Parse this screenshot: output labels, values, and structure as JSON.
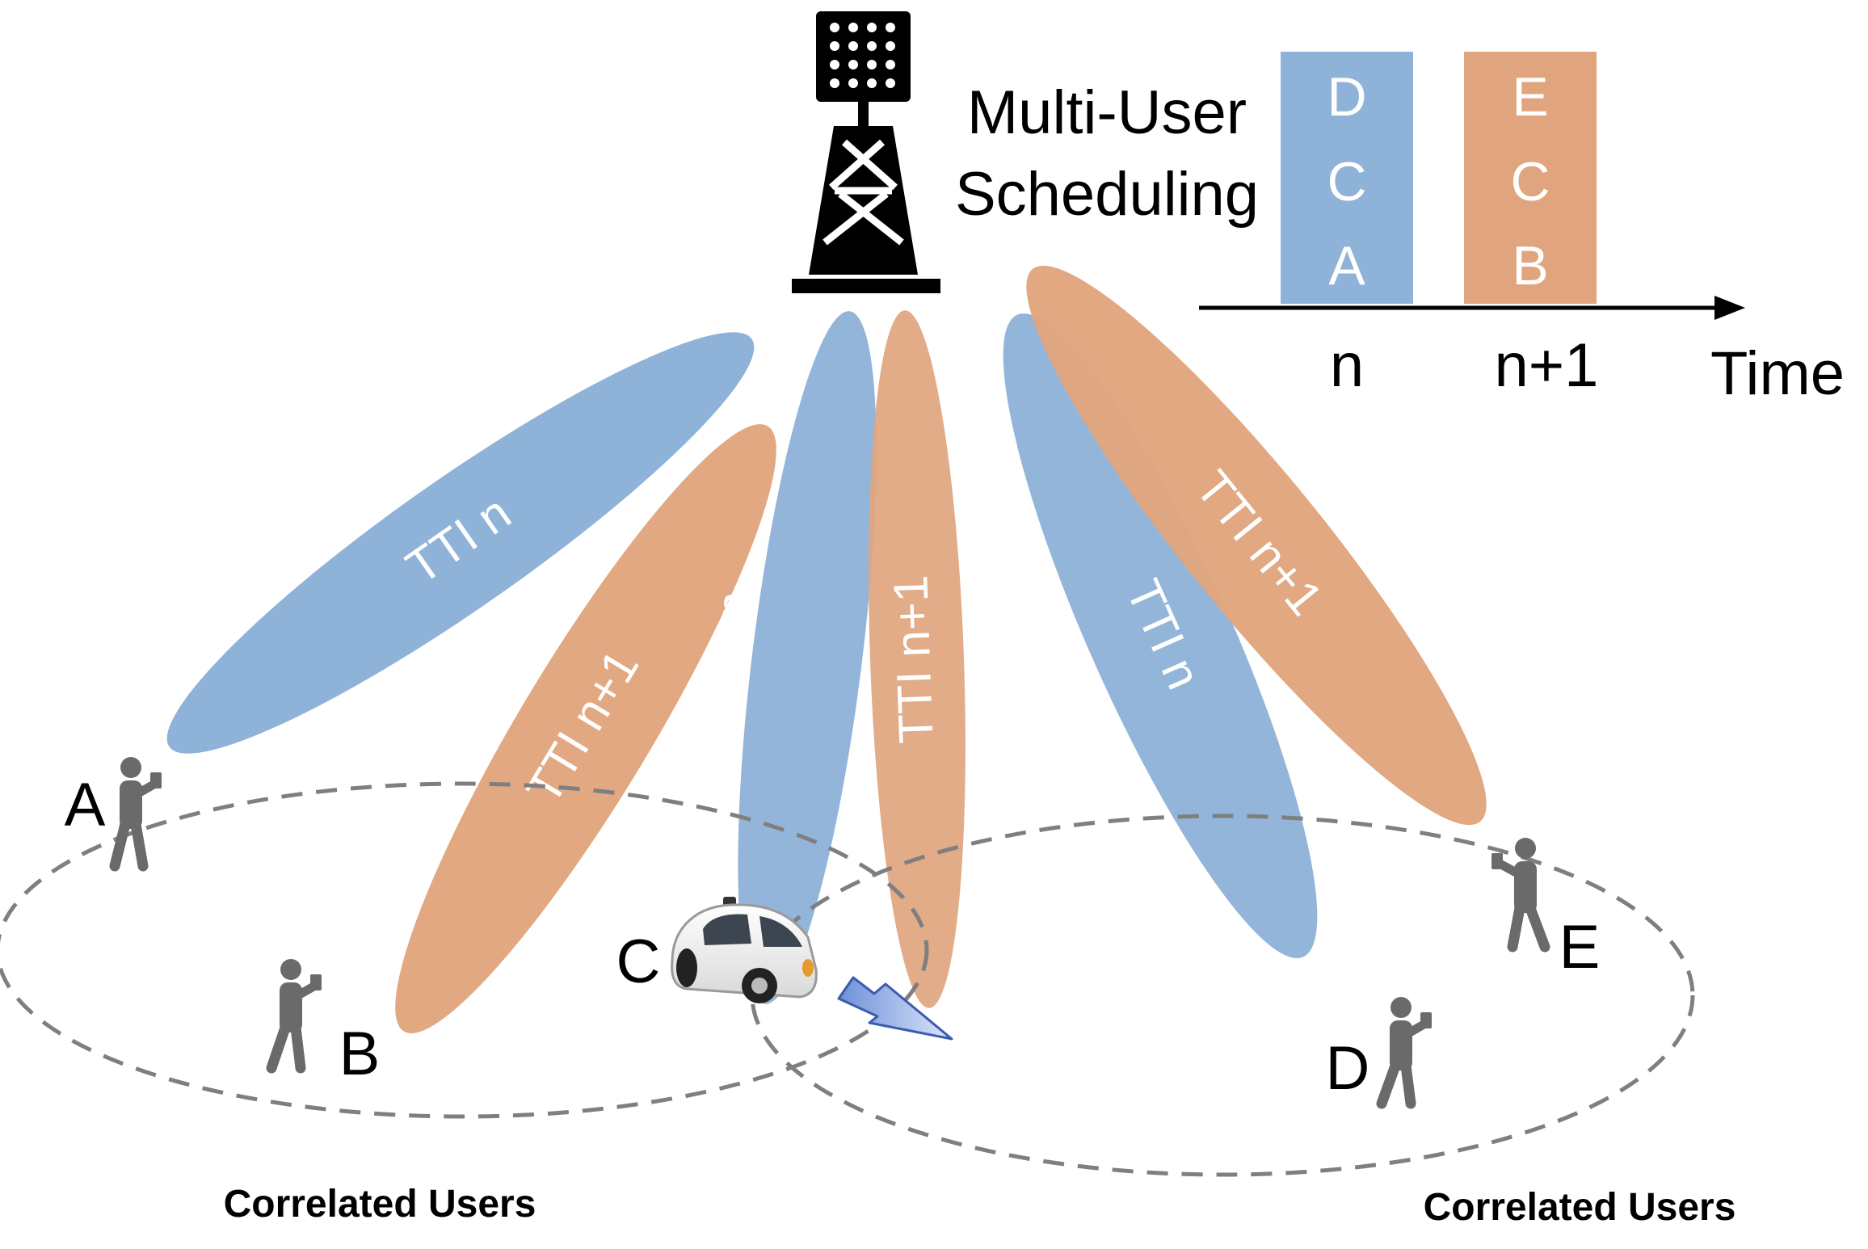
{
  "title": "Multi-User Scheduling",
  "title_lines": [
    "Multi-User",
    "Scheduling"
  ],
  "colors": {
    "tti_n": "#8fb3d8",
    "tti_n1": "#e0a57e",
    "dash": "#7f7f7f",
    "person": "#6a6a6a"
  },
  "schedule": {
    "slots": [
      {
        "label": "n",
        "users": [
          "D",
          "C",
          "A"
        ],
        "color": "#8fb3d8"
      },
      {
        "label": "n+1",
        "users": [
          "E",
          "C",
          "B"
        ],
        "color": "#e0a57e"
      }
    ],
    "axis_label": "Time"
  },
  "beams": [
    {
      "label": "TTI n",
      "color": "#8fb3d8"
    },
    {
      "label": "TTI n+1",
      "color": "#e0a57e"
    },
    {
      "label": "TTI n",
      "color": "#8fb3d8"
    },
    {
      "label": "TTI n+1",
      "color": "#e0a57e"
    },
    {
      "label": "TTI n",
      "color": "#8fb3d8"
    },
    {
      "label": "TTI n+1",
      "color": "#e0a57e"
    }
  ],
  "users": [
    "A",
    "B",
    "C",
    "D",
    "E"
  ],
  "groups": [
    {
      "label": "Correlated Users"
    },
    {
      "label": "Correlated Users"
    }
  ]
}
